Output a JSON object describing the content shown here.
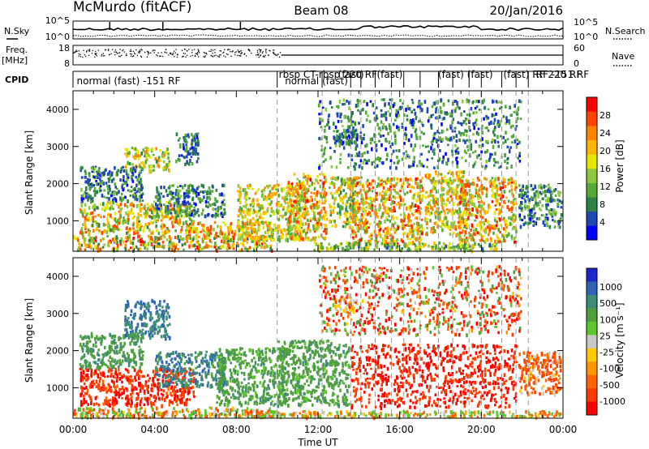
{
  "header": {
    "station": "McMurdo (fitACF)",
    "beam": "Beam 08",
    "date": "20/Jan/2016"
  },
  "left_labels": {
    "nsky": "N.Sky",
    "freq": "Freq.",
    "freq_unit": "[MHz]",
    "cpid": "CPID"
  },
  "right_labels": {
    "nsearch": "N.Search",
    "nave": "Nave"
  },
  "noise_ticks": {
    "left": [
      "10^5",
      "10^0"
    ],
    "right": [
      "10^5",
      "10^0"
    ]
  },
  "freq_ticks": {
    "left": [
      "18",
      "8"
    ],
    "right": [
      "60",
      "0"
    ]
  },
  "cpid_labels": [
    {
      "t": 0.1,
      "text": "normal (fast) -151 RF"
    },
    {
      "t": 10.0,
      "text": "rbsp CT-rbsp 220 RF"
    },
    {
      "t": 10.3,
      "text": "normal (fast)"
    },
    {
      "t": 12.9,
      "text": "(fast)"
    },
    {
      "t": 14.8,
      "text": "(fast)"
    },
    {
      "t": 17.8,
      "text": "(fast) (fast)"
    },
    {
      "t": 21.0,
      "text": "(fast) RF 220 RF"
    },
    {
      "t": 22.6,
      "text": "RF -151 RF"
    }
  ],
  "cpid_ticks": [
    10.0,
    12.2,
    13.6,
    14.1,
    14.8,
    15.6,
    16.2,
    17.0,
    17.9,
    18.6,
    19.4,
    20.0,
    21.0,
    21.7,
    22.3
  ],
  "time_labels": [
    "00:00",
    "04:00",
    "08:00",
    "12:00",
    "16:00",
    "20:00",
    "00:00"
  ],
  "x_axis_label": "Time UT",
  "range_axis_label": "Slant Range [km]",
  "range_ticks": [
    "1000",
    "2000",
    "3000",
    "4000"
  ],
  "power_colorbar": {
    "label": "Power [dB]",
    "ticks": [
      "4",
      "8",
      "12",
      "16",
      "20",
      "24",
      "28"
    ],
    "colors": [
      "#0000ff",
      "#1e46b4",
      "#2d8246",
      "#55aa37",
      "#8cc83c",
      "#e6e600",
      "#ffb400",
      "#ff8200",
      "#ff4600",
      "#ff0000"
    ]
  },
  "velocity_colorbar": {
    "label": "Velocity [m s⁻¹]",
    "ticks": [
      "1000",
      "500",
      "100",
      "25",
      "-25",
      "-100",
      "-500",
      "-1000"
    ],
    "colors": [
      "#1e28c8",
      "#2d64b4",
      "#3c8c78",
      "#4fa03c",
      "#5ac828",
      "#c8c8c8",
      "#ffc800",
      "#ff9600",
      "#ff6400",
      "#ff3c00",
      "#ff0000"
    ]
  },
  "chart_data": [
    {
      "type": "heatmap",
      "title": "Power",
      "xlabel": "Time UT",
      "ylabel": "Slant Range [km]",
      "xlim": [
        0,
        24
      ],
      "ylim": [
        180,
        4500
      ],
      "colorbar_label": "Power [dB]",
      "colorbar_range": [
        0,
        32
      ],
      "regions": [
        {
          "t0": 0.0,
          "t1": 9.8,
          "r0": 180,
          "r1": 650,
          "v_lo": 6,
          "v_hi": 30
        },
        {
          "t0": 0.3,
          "t1": 6.0,
          "r0": 650,
          "r1": 1550,
          "v_lo": 8,
          "v_hi": 28
        },
        {
          "t0": 5.5,
          "t1": 9.8,
          "r0": 500,
          "r1": 1000,
          "v_lo": 14,
          "v_hi": 28
        },
        {
          "t0": 2.5,
          "t1": 4.8,
          "r0": 2300,
          "r1": 3000,
          "v_lo": 8,
          "v_hi": 24
        },
        {
          "t0": 0.3,
          "t1": 3.5,
          "r0": 1500,
          "r1": 2500,
          "v_lo": 2,
          "v_hi": 14
        },
        {
          "t0": 4.0,
          "t1": 7.5,
          "r0": 1100,
          "r1": 2000,
          "v_lo": 2,
          "v_hi": 14
        },
        {
          "t0": 5.0,
          "t1": 6.2,
          "r0": 2500,
          "r1": 3400,
          "v_lo": 2,
          "v_hi": 12
        },
        {
          "t0": 8.0,
          "t1": 11.5,
          "r0": 450,
          "r1": 2000,
          "v_lo": 10,
          "v_hi": 24
        },
        {
          "t0": 10.5,
          "t1": 12.5,
          "r0": 450,
          "r1": 2300,
          "v_lo": 10,
          "v_hi": 30
        },
        {
          "t0": 12.5,
          "t1": 14.0,
          "r0": 800,
          "r1": 2200,
          "v_lo": 8,
          "v_hi": 24
        },
        {
          "t0": 13.6,
          "t1": 17.2,
          "r0": 350,
          "r1": 2200,
          "v_lo": 10,
          "v_hi": 30
        },
        {
          "t0": 17.2,
          "t1": 19.2,
          "r0": 600,
          "r1": 2400,
          "v_lo": 10,
          "v_hi": 26
        },
        {
          "t0": 18.8,
          "t1": 21.8,
          "r0": 400,
          "r1": 2200,
          "v_lo": 10,
          "v_hi": 30
        },
        {
          "t0": 21.8,
          "t1": 24.0,
          "r0": 800,
          "r1": 2000,
          "v_lo": 2,
          "v_hi": 16
        },
        {
          "t0": 12.7,
          "t1": 14.0,
          "r0": 3000,
          "r1": 3500,
          "v_lo": 2,
          "v_hi": 12
        },
        {
          "t0": 11.5,
          "t1": 21.0,
          "r0": 180,
          "r1": 450,
          "v_lo": 6,
          "v_hi": 20
        },
        {
          "t0": 12.0,
          "t1": 22.0,
          "r0": 2400,
          "r1": 4300,
          "v_lo": 2,
          "v_hi": 14
        }
      ]
    },
    {
      "type": "heatmap",
      "title": "Velocity",
      "xlabel": "Time UT",
      "ylabel": "Slant Range [km]",
      "xlim": [
        0,
        24
      ],
      "ylim": [
        180,
        4500
      ],
      "colorbar_label": "Velocity [m s⁻¹]",
      "colorbar_range": [
        -1000,
        1000
      ],
      "regions": [
        {
          "t0": 0.0,
          "t1": 9.8,
          "r0": 180,
          "r1": 500,
          "v_lo": -200,
          "v_hi": 200
        },
        {
          "t0": 0.3,
          "t1": 6.0,
          "r0": 500,
          "r1": 1550,
          "v_lo": -600,
          "v_hi": -100
        },
        {
          "t0": 2.5,
          "t1": 4.8,
          "r0": 2300,
          "r1": 3400,
          "v_lo": 400,
          "v_hi": 1000
        },
        {
          "t0": 0.3,
          "t1": 3.5,
          "r0": 1500,
          "r1": 2500,
          "v_lo": 150,
          "v_hi": 500
        },
        {
          "t0": 4.0,
          "t1": 7.5,
          "r0": 1000,
          "r1": 2000,
          "v_lo": 300,
          "v_hi": 900
        },
        {
          "t0": 7.0,
          "t1": 10.5,
          "r0": 500,
          "r1": 2100,
          "v_lo": 100,
          "v_hi": 500
        },
        {
          "t0": 10.0,
          "t1": 13.6,
          "r0": 500,
          "r1": 2300,
          "v_lo": 100,
          "v_hi": 450
        },
        {
          "t0": 12.7,
          "t1": 14.0,
          "r0": 3000,
          "r1": 3500,
          "v_lo": -40,
          "v_hi": 40
        },
        {
          "t0": 13.6,
          "t1": 21.8,
          "r0": 450,
          "r1": 2200,
          "v_lo": -700,
          "v_hi": -150
        },
        {
          "t0": 21.8,
          "t1": 24.0,
          "r0": 800,
          "r1": 2000,
          "v_lo": -300,
          "v_hi": 50
        },
        {
          "t0": 9.0,
          "t1": 24.0,
          "r0": 180,
          "r1": 400,
          "v_lo": -150,
          "v_hi": 150
        },
        {
          "t0": 12.0,
          "t1": 22.0,
          "r0": 2400,
          "r1": 4300,
          "v_lo": -600,
          "v_hi": 300
        }
      ]
    }
  ]
}
